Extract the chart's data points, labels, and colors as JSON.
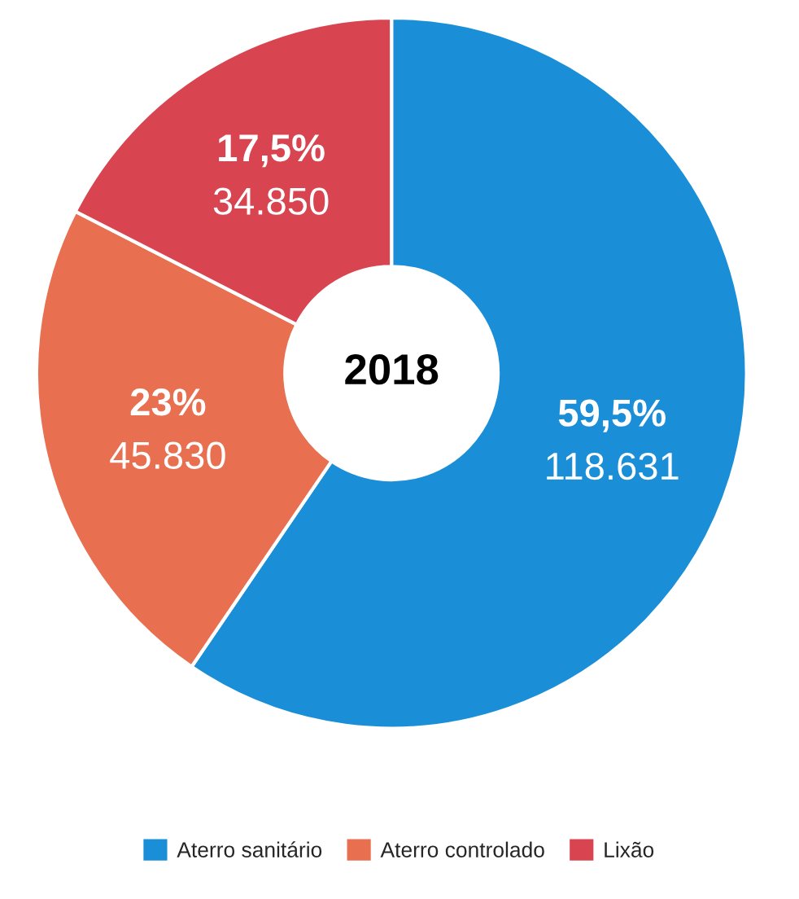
{
  "chart_data": {
    "type": "donut",
    "title": "2018",
    "categories": [
      "Aterro sanitário",
      "Aterro controlado",
      "Lixão"
    ],
    "values": [
      118631,
      45830,
      34850
    ],
    "value_labels": [
      "59,5%\n118.631",
      "23%\n45.830",
      "17,5%\n34.850"
    ],
    "colors": [
      "#1b8ed8",
      "#e86f4f",
      "#d8444f"
    ],
    "legend": "bottom"
  }
}
